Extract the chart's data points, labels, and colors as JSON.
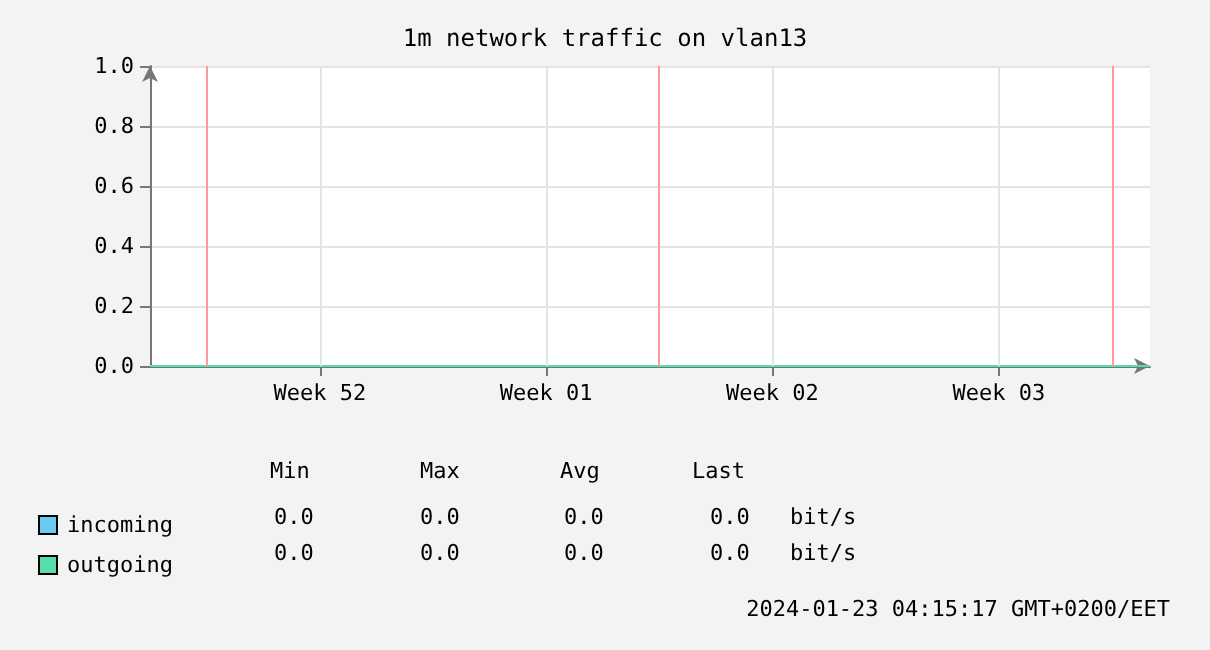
{
  "chart_data": {
    "type": "line",
    "title": "1m network traffic on vlan13",
    "x": [
      "2023-12-23T06:00",
      "2024-01-23T04:15"
    ],
    "xlim": [
      "2023-12-23T06:00",
      "2024-01-23T04:15"
    ],
    "xticks": [
      {
        "value": "2023-12-28T12:00",
        "label": "Week 52"
      },
      {
        "value": "2024-01-04T12:00",
        "label": "Week 01"
      },
      {
        "value": "2024-01-11T12:00",
        "label": "Week 02"
      },
      {
        "value": "2024-01-18T12:00",
        "label": "Week 03"
      }
    ],
    "ylim": [
      0,
      1
    ],
    "yticks": [
      {
        "value": 0,
        "label": "0.0"
      },
      {
        "value": 0.2,
        "label": "0.2"
      },
      {
        "value": 0.4,
        "label": "0.4"
      },
      {
        "value": 0.6,
        "label": "0.6"
      },
      {
        "value": 0.8,
        "label": "0.8"
      },
      {
        "value": 1,
        "label": "1.0"
      }
    ],
    "series": [
      {
        "name": "incoming",
        "color": "#66ccee",
        "values": [
          null,
          null
        ]
      },
      {
        "name": "outgoing",
        "color": "#55ddaa",
        "values": [
          0,
          0
        ]
      }
    ],
    "ref_lines": [
      {
        "axis": "x",
        "value": "2023-12-25",
        "color": "#ff9999"
      },
      {
        "axis": "x",
        "value": "2024-01-08",
        "color": "#ff9999"
      },
      {
        "axis": "x",
        "value": "2024-01-22",
        "color": "#ff9999"
      }
    ],
    "grid": true,
    "legend": "bottom left",
    "annotations": [
      "Min",
      "Max",
      "Avg",
      "Last",
      "0.0",
      "0.0",
      "0.0",
      "0.0",
      "bit/s",
      "0.0",
      "0.0",
      "0.0",
      "0.0",
      "bit/s",
      "2024-01-23 04:15:17 GMT+0200/EET"
    ]
  }
}
